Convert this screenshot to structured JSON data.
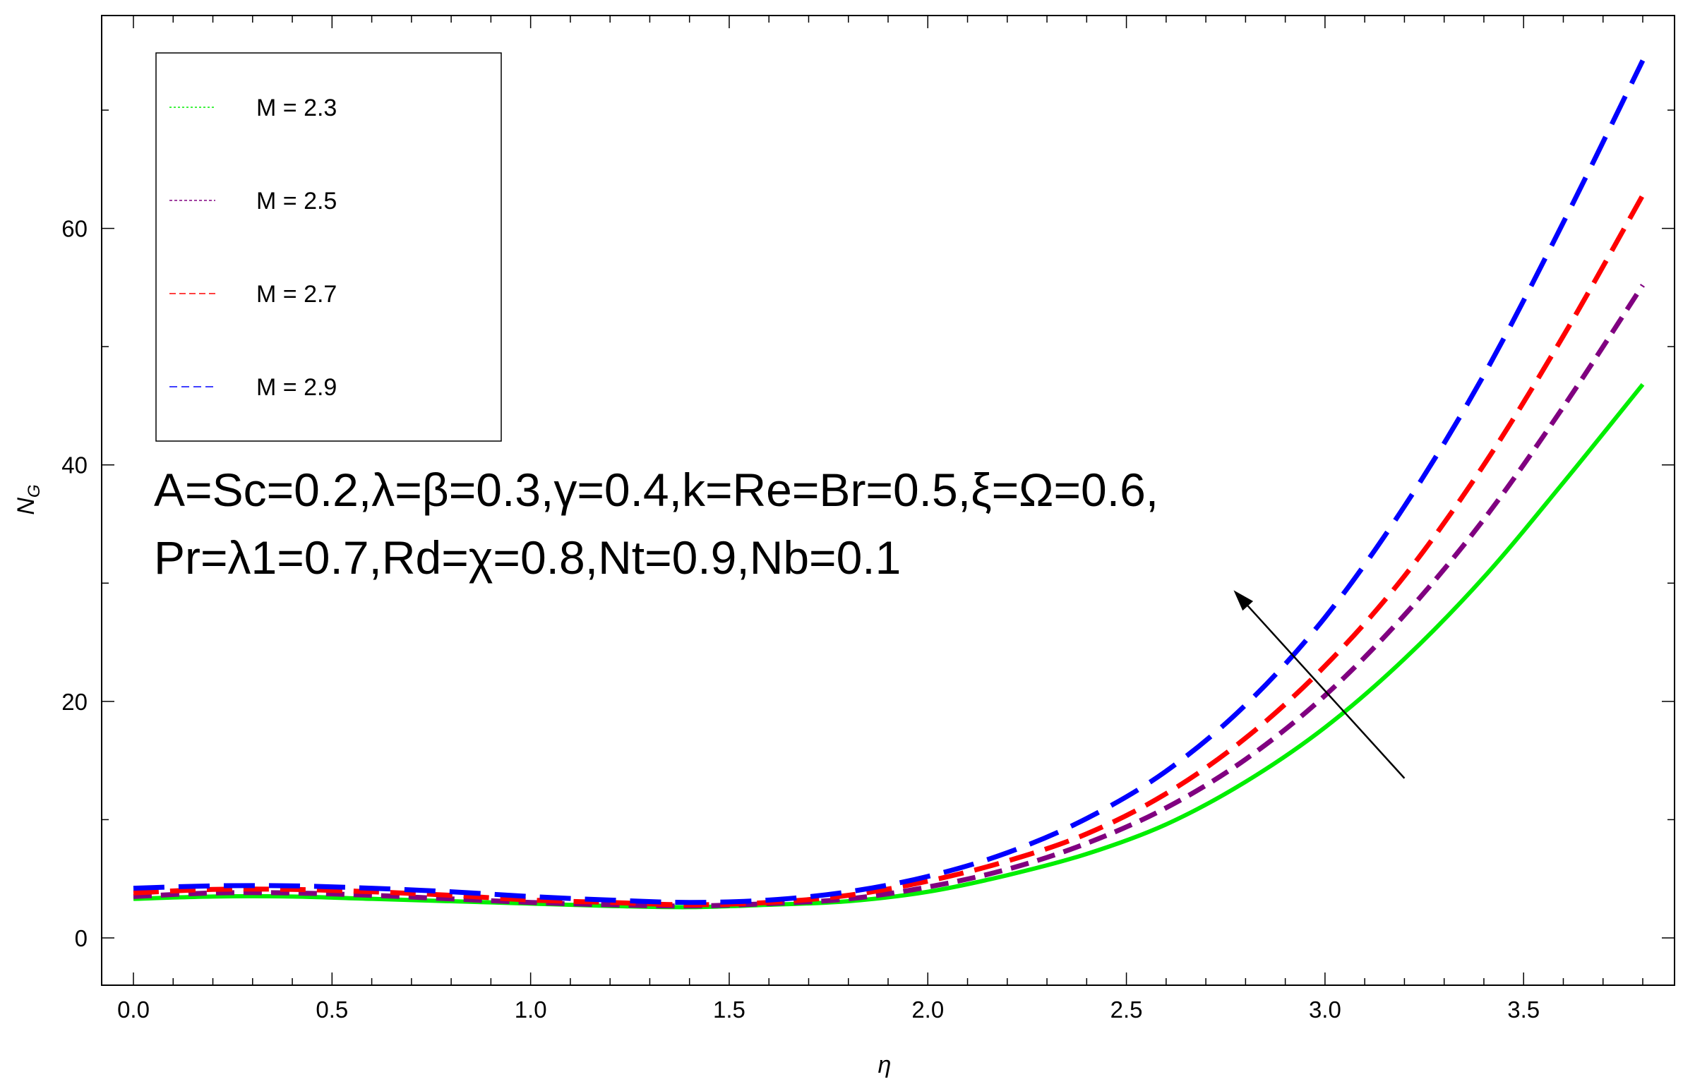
{
  "chart_data": {
    "type": "line",
    "xlabel": "η",
    "ylabel": {
      "main": "N",
      "sub": "G"
    },
    "xlim": [
      -0.08,
      3.88
    ],
    "ylim": [
      -4,
      78
    ],
    "xticks": [
      0.0,
      0.5,
      1.0,
      1.5,
      2.0,
      2.5,
      3.0,
      3.5
    ],
    "xtick_labels": [
      "0.0",
      "0.5",
      "1.0",
      "1.5",
      "2.0",
      "2.5",
      "3.0",
      "3.5"
    ],
    "yticks": [
      0,
      20,
      40,
      60
    ],
    "ytick_labels": [
      "0",
      "20",
      "40",
      "60"
    ],
    "grid": false,
    "legend_position": "top-left",
    "series": [
      {
        "name": "M = 2.3",
        "color": "#00ee00",
        "style": "solid",
        "x": [
          0.0,
          0.2,
          0.4,
          0.6,
          0.8,
          1.0,
          1.2,
          1.4,
          1.6,
          1.8,
          2.0,
          2.2,
          2.4,
          2.6,
          2.8,
          3.0,
          3.2,
          3.4,
          3.6,
          3.8
        ],
        "y": [
          3.3,
          3.5,
          3.5,
          3.3,
          3.1,
          2.9,
          2.7,
          2.6,
          2.8,
          3.1,
          3.9,
          5.3,
          7.1,
          9.6,
          13.2,
          17.8,
          23.6,
          30.5,
          38.5,
          46.8
        ]
      },
      {
        "name": "M = 2.5",
        "color": "#800080",
        "style": "dashed",
        "x": [
          0.0,
          0.2,
          0.4,
          0.6,
          0.8,
          1.0,
          1.2,
          1.4,
          1.6,
          1.8,
          2.0,
          2.2,
          2.4,
          2.6,
          2.8,
          3.0,
          3.2,
          3.4,
          3.6,
          3.8
        ],
        "y": [
          3.5,
          3.8,
          3.8,
          3.6,
          3.3,
          3.0,
          2.8,
          2.7,
          2.9,
          3.3,
          4.3,
          5.8,
          8.0,
          11.0,
          15.1,
          20.5,
          27.3,
          35.4,
          44.9,
          55.2
        ]
      },
      {
        "name": "M = 2.7",
        "color": "#ff0000",
        "style": "dashed",
        "x": [
          0.0,
          0.2,
          0.4,
          0.6,
          0.8,
          1.0,
          1.2,
          1.4,
          1.6,
          1.8,
          2.0,
          2.2,
          2.4,
          2.6,
          2.8,
          3.0,
          3.2,
          3.4,
          3.6,
          3.8
        ],
        "y": [
          3.8,
          4.1,
          4.1,
          3.9,
          3.6,
          3.2,
          3.0,
          2.8,
          3.0,
          3.6,
          4.8,
          6.5,
          8.8,
          12.2,
          16.9,
          23.0,
          30.6,
          40.0,
          50.9,
          62.8
        ]
      },
      {
        "name": "M = 2.9",
        "color": "#0000ff",
        "style": "dashed",
        "x": [
          0.0,
          0.2,
          0.4,
          0.6,
          0.8,
          1.0,
          1.2,
          1.4,
          1.6,
          1.8,
          2.0,
          2.2,
          2.4,
          2.6,
          2.8,
          3.0,
          3.2,
          3.4,
          3.6,
          3.8
        ],
        "y": [
          4.2,
          4.4,
          4.4,
          4.2,
          3.9,
          3.5,
          3.2,
          3.0,
          3.2,
          3.9,
          5.2,
          7.2,
          10.1,
          14.1,
          19.7,
          27.1,
          36.5,
          47.6,
          60.5,
          74.2
        ]
      }
    ],
    "annotations": {
      "line1": "A=Sc=0.2,λ=β=0.3,γ=0.4,k=Re=Br=0.5,ξ=Ω=0.6,",
      "line2": "Pr=λ1=0.7,Rd=χ=0.8,Nt=0.9,Nb=0.1",
      "arrow": {
        "from": [
          3.2,
          13.5
        ],
        "to": [
          2.77,
          29.4
        ]
      }
    }
  }
}
